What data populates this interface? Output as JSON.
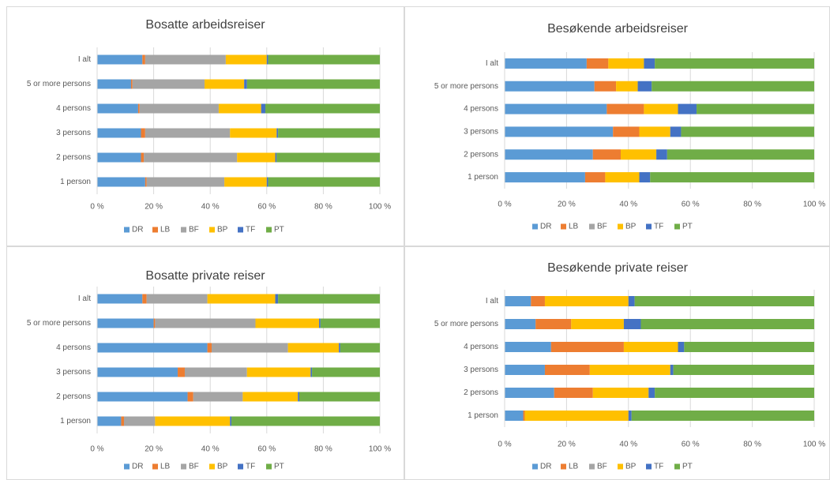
{
  "chart_data": [
    {
      "type": "bar",
      "horizontal": true,
      "stacked": true,
      "title": "Bosatte arbeidsreiser",
      "categories": [
        "I alt",
        "5 or more persons",
        "4 persons",
        "3 persons",
        "2 persons",
        "1 person"
      ],
      "series": [
        {
          "name": "DR",
          "color": "#5b9bd5",
          "values": [
            16,
            12,
            14.5,
            15.5,
            15.5,
            17
          ]
        },
        {
          "name": "LB",
          "color": "#ed7d31",
          "values": [
            1,
            0.5,
            0.5,
            1.5,
            1,
            0.5
          ]
        },
        {
          "name": "BF",
          "color": "#a5a5a5",
          "values": [
            28.5,
            25.5,
            28,
            30,
            33,
            27.5
          ]
        },
        {
          "name": "BP",
          "color": "#ffc000",
          "values": [
            14.5,
            14,
            15,
            16.5,
            13.5,
            15
          ]
        },
        {
          "name": "TF",
          "color": "#4472c4",
          "values": [
            0.5,
            1,
            1.5,
            0.5,
            0.5,
            0.5
          ]
        },
        {
          "name": "PT",
          "color": "#70ad47",
          "values": [
            39.5,
            47,
            40.5,
            36,
            36.5,
            39.5
          ]
        }
      ],
      "xlim": [
        0,
        100
      ],
      "xticks": [
        {
          "value": 0,
          "label": "0 %"
        },
        {
          "value": 20,
          "label": "20 %"
        },
        {
          "value": 40,
          "label": "40 %"
        },
        {
          "value": 60,
          "label": "60 %"
        },
        {
          "value": 80,
          "label": "80 %"
        },
        {
          "value": 100,
          "label": "100 %"
        }
      ],
      "grid": true,
      "legend": "bottom"
    },
    {
      "type": "bar",
      "horizontal": true,
      "stacked": true,
      "title": "Besøkende arbeidsreiser",
      "categories": [
        "I alt",
        "5 or more persons",
        "4 persons",
        "3 persons",
        "2 persons",
        "1 person"
      ],
      "series": [
        {
          "name": "DR",
          "color": "#5b9bd5",
          "values": [
            26.5,
            29,
            33,
            35,
            28.5,
            26
          ]
        },
        {
          "name": "LB",
          "color": "#ed7d31",
          "values": [
            7,
            7,
            12,
            8.5,
            9,
            6.5
          ]
        },
        {
          "name": "BF",
          "color": "#a5a5a5",
          "values": [
            0,
            0,
            0,
            0,
            0,
            0
          ]
        },
        {
          "name": "BP",
          "color": "#ffc000",
          "values": [
            11.5,
            7,
            11,
            10,
            11.5,
            11
          ]
        },
        {
          "name": "TF",
          "color": "#4472c4",
          "values": [
            3.5,
            4.5,
            6,
            3.5,
            3.5,
            3.5
          ]
        },
        {
          "name": "PT",
          "color": "#70ad47",
          "values": [
            51.5,
            52.5,
            38,
            43,
            47.5,
            53
          ]
        }
      ],
      "xlim": [
        0,
        100
      ],
      "xticks": [
        {
          "value": 0,
          "label": "0 %"
        },
        {
          "value": 20,
          "label": "20 %"
        },
        {
          "value": 40,
          "label": "40 %"
        },
        {
          "value": 60,
          "label": "60 %"
        },
        {
          "value": 80,
          "label": "80 %"
        },
        {
          "value": 100,
          "label": "100 %"
        }
      ],
      "grid": true,
      "legend": "bottom"
    },
    {
      "type": "bar",
      "horizontal": true,
      "stacked": true,
      "title": "Bosatte private reiser",
      "categories": [
        "I alt",
        "5 or more persons",
        "4 persons",
        "3 persons",
        "2 persons",
        "1 person"
      ],
      "series": [
        {
          "name": "DR",
          "color": "#5b9bd5",
          "values": [
            16,
            20,
            39,
            28.5,
            32,
            8.5
          ]
        },
        {
          "name": "LB",
          "color": "#ed7d31",
          "values": [
            1.5,
            0.5,
            1.5,
            2.5,
            2,
            1
          ]
        },
        {
          "name": "BF",
          "color": "#a5a5a5",
          "values": [
            21.5,
            35.5,
            27,
            22,
            17.5,
            11
          ]
        },
        {
          "name": "BP",
          "color": "#ffc000",
          "values": [
            24,
            22.5,
            18,
            22.5,
            19.5,
            26.5
          ]
        },
        {
          "name": "TF",
          "color": "#4472c4",
          "values": [
            1,
            0.5,
            0.5,
            0.5,
            0.5,
            0.5
          ]
        },
        {
          "name": "PT",
          "color": "#70ad47",
          "values": [
            36,
            21,
            14,
            24,
            28.5,
            52.5
          ]
        }
      ],
      "xlim": [
        0,
        100
      ],
      "xticks": [
        {
          "value": 0,
          "label": "0 %"
        },
        {
          "value": 20,
          "label": "20 %"
        },
        {
          "value": 40,
          "label": "40 %"
        },
        {
          "value": 60,
          "label": "60 %"
        },
        {
          "value": 80,
          "label": "80 %"
        },
        {
          "value": 100,
          "label": "100 %"
        }
      ],
      "grid": true,
      "legend": "bottom"
    },
    {
      "type": "bar",
      "horizontal": true,
      "stacked": true,
      "title": "Besøkende private reiser",
      "categories": [
        "I alt",
        "5 or more persons",
        "4 persons",
        "3 persons",
        "2 persons",
        "1 person"
      ],
      "series": [
        {
          "name": "DR",
          "color": "#5b9bd5",
          "values": [
            8.5,
            10,
            15,
            13,
            16,
            6
          ]
        },
        {
          "name": "LB",
          "color": "#ed7d31",
          "values": [
            4.5,
            11.5,
            23.5,
            14.5,
            12.5,
            0.5
          ]
        },
        {
          "name": "BF",
          "color": "#a5a5a5",
          "values": [
            0,
            0,
            0,
            0,
            0,
            0
          ]
        },
        {
          "name": "BP",
          "color": "#ffc000",
          "values": [
            27,
            17,
            17.5,
            26,
            18,
            33.5
          ]
        },
        {
          "name": "TF",
          "color": "#4472c4",
          "values": [
            2,
            5.5,
            2,
            1,
            2,
            1
          ]
        },
        {
          "name": "PT",
          "color": "#70ad47",
          "values": [
            58,
            56,
            42,
            45.5,
            51.5,
            59
          ]
        }
      ],
      "xlim": [
        0,
        100
      ],
      "xticks": [
        {
          "value": 0,
          "label": "0 %"
        },
        {
          "value": 20,
          "label": "20 %"
        },
        {
          "value": 40,
          "label": "40 %"
        },
        {
          "value": 60,
          "label": "60 %"
        },
        {
          "value": 80,
          "label": "80 %"
        },
        {
          "value": 100,
          "label": "100 %"
        }
      ],
      "grid": true,
      "legend": "bottom"
    }
  ]
}
